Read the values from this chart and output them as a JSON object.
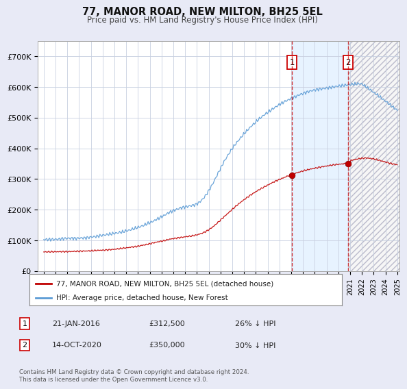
{
  "title": "77, MANOR ROAD, NEW MILTON, BH25 5EL",
  "subtitle": "Price paid vs. HM Land Registry's House Price Index (HPI)",
  "legend_line1": "77, MANOR ROAD, NEW MILTON, BH25 5EL (detached house)",
  "legend_line2": "HPI: Average price, detached house, New Forest",
  "annotation1": {
    "label": "1",
    "date": "21-JAN-2016",
    "price": "£312,500",
    "note": "26% ↓ HPI"
  },
  "annotation2": {
    "label": "2",
    "date": "14-OCT-2020",
    "price": "£350,000",
    "note": "30% ↓ HPI"
  },
  "footer": "Contains HM Land Registry data © Crown copyright and database right 2024.\nThis data is licensed under the Open Government Licence v3.0.",
  "hpi_color": "#5b9bd5",
  "price_color": "#c00000",
  "background_color": "#e8eaf6",
  "plot_bg_color": "#ffffff",
  "ylim": [
    0,
    750000
  ],
  "yticks": [
    0,
    100000,
    200000,
    300000,
    400000,
    500000,
    600000,
    700000
  ],
  "ytick_labels": [
    "£0",
    "£100K",
    "£200K",
    "£300K",
    "£400K",
    "£500K",
    "£600K",
    "£700K"
  ],
  "sale1_x": 2016.06,
  "sale1_y": 312500,
  "sale2_x": 2020.83,
  "sale2_y": 350000,
  "xmin": 1995,
  "xmax": 2025
}
